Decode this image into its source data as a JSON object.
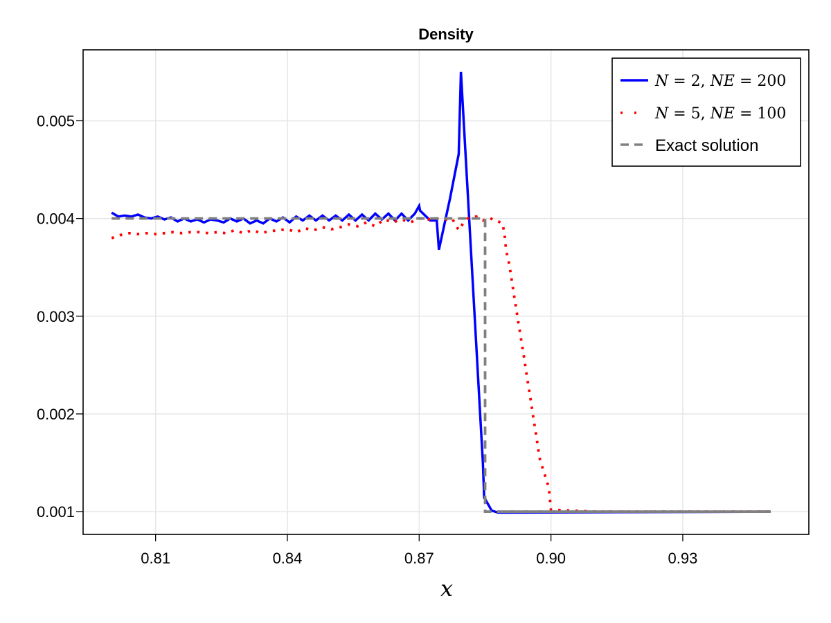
{
  "chart_data": {
    "type": "line",
    "title": "Density",
    "xlabel": "x",
    "ylabel": "",
    "xlim": [
      0.7935,
      0.9587
    ],
    "ylim": [
      0.000767,
      0.005726
    ],
    "grid": true,
    "legend_position": "top-right",
    "xticks": [
      0.81,
      0.84,
      0.87,
      0.9,
      0.93
    ],
    "xtick_labels": [
      "0.81",
      "0.84",
      "0.87",
      "0.90",
      "0.93"
    ],
    "yticks": [
      0.001,
      0.002,
      0.003,
      0.004,
      0.005
    ],
    "ytick_labels": [
      "0.001",
      "0.002",
      "0.003",
      "0.004",
      "0.005"
    ],
    "series": [
      {
        "name": "N = 2, NE = 200",
        "legend_label": "N=2, NE=200",
        "color": "#0000ff",
        "style": "solid",
        "x": [
          0.8,
          0.8015,
          0.803,
          0.8045,
          0.806,
          0.8075,
          0.809,
          0.8105,
          0.812,
          0.8135,
          0.815,
          0.8165,
          0.818,
          0.8195,
          0.821,
          0.8225,
          0.824,
          0.8255,
          0.827,
          0.8285,
          0.83,
          0.8315,
          0.833,
          0.8345,
          0.836,
          0.8375,
          0.839,
          0.8405,
          0.842,
          0.8435,
          0.845,
          0.8465,
          0.848,
          0.8495,
          0.851,
          0.8525,
          0.854,
          0.8555,
          0.857,
          0.8585,
          0.86,
          0.8615,
          0.863,
          0.8645,
          0.866,
          0.8675,
          0.869,
          0.87,
          0.8702,
          0.8725,
          0.874,
          0.8745,
          0.877,
          0.879,
          0.8795,
          0.8845,
          0.8848,
          0.885,
          0.8865,
          0.888,
          0.95
        ],
        "y": [
          0.00406,
          0.00402,
          0.00403,
          0.00402,
          0.00404,
          0.00401,
          0.004,
          0.00402,
          0.00399,
          0.00401,
          0.00397,
          0.004,
          0.00397,
          0.00399,
          0.00396,
          0.00399,
          0.00398,
          0.00396,
          0.004,
          0.00397,
          0.004,
          0.00395,
          0.00398,
          0.00395,
          0.004,
          0.00397,
          0.00401,
          0.00396,
          0.00402,
          0.00398,
          0.00403,
          0.00398,
          0.00403,
          0.00398,
          0.00403,
          0.00398,
          0.00404,
          0.00398,
          0.00404,
          0.00398,
          0.00405,
          0.00399,
          0.00405,
          0.00398,
          0.00405,
          0.00398,
          0.00405,
          0.00413,
          0.00408,
          0.00398,
          0.00398,
          0.00368,
          0.0042,
          0.00466,
          0.0055,
          0.0015,
          0.00114,
          0.00113,
          0.00101,
          0.00099,
          0.001
        ]
      },
      {
        "name": "N = 5, NE = 100",
        "legend_label": "N=5, NE=100",
        "color": "#ff0000",
        "style": "dotted",
        "x": [
          0.8,
          0.802,
          0.804,
          0.806,
          0.808,
          0.81,
          0.812,
          0.814,
          0.816,
          0.818,
          0.82,
          0.822,
          0.824,
          0.826,
          0.828,
          0.83,
          0.832,
          0.834,
          0.836,
          0.838,
          0.84,
          0.842,
          0.844,
          0.846,
          0.848,
          0.85,
          0.852,
          0.854,
          0.856,
          0.858,
          0.86,
          0.862,
          0.864,
          0.866,
          0.868,
          0.87,
          0.872,
          0.874,
          0.876,
          0.8775,
          0.879,
          0.88,
          0.881,
          0.883,
          0.8845,
          0.886,
          0.887,
          0.888,
          0.889,
          0.8895,
          0.8898,
          0.8905,
          0.891,
          0.8915,
          0.892,
          0.8925,
          0.893,
          0.8935,
          0.894,
          0.8945,
          0.895,
          0.8955,
          0.896,
          0.8965,
          0.897,
          0.8975,
          0.8985,
          0.8995,
          0.9,
          0.91,
          0.92,
          0.93,
          0.94,
          0.95
        ],
        "y": [
          0.0038,
          0.00383,
          0.00385,
          0.00384,
          0.00385,
          0.00384,
          0.00385,
          0.00386,
          0.00385,
          0.00386,
          0.00386,
          0.00385,
          0.00386,
          0.00385,
          0.00388,
          0.00385,
          0.00388,
          0.00385,
          0.00387,
          0.00388,
          0.00389,
          0.00386,
          0.0039,
          0.00388,
          0.00391,
          0.00389,
          0.00391,
          0.00394,
          0.00392,
          0.00396,
          0.00392,
          0.00399,
          0.00396,
          0.00399,
          0.00396,
          0.004,
          0.00399,
          0.004,
          0.00399,
          0.004,
          0.00388,
          0.00395,
          0.004,
          0.00402,
          0.00398,
          0.00401,
          0.00398,
          0.00397,
          0.00395,
          0.00381,
          0.00367,
          0.00353,
          0.00339,
          0.00324,
          0.0031,
          0.00296,
          0.00282,
          0.00268,
          0.00254,
          0.00239,
          0.00225,
          0.00211,
          0.00196,
          0.00182,
          0.00167,
          0.00153,
          0.00139,
          0.00125,
          0.00102,
          0.001,
          0.001,
          0.001,
          0.001,
          0.001
        ]
      },
      {
        "name": "Exact solution",
        "legend_label": "Exact solution",
        "color": "#808080",
        "style": "dashed",
        "x": [
          0.8,
          0.885,
          0.885,
          0.95
        ],
        "y": [
          0.004,
          0.004,
          0.001,
          0.001
        ]
      }
    ]
  },
  "legend": {
    "items": [
      {
        "label_parts": [
          "N",
          "=",
          "2,",
          "NE",
          "=",
          "200"
        ],
        "text": "N=2, NE=200"
      },
      {
        "label_parts": [
          "N",
          "=",
          "5,",
          "NE",
          "=",
          "100"
        ],
        "text": "N=5, NE=100"
      },
      {
        "text": "Exact solution"
      }
    ]
  }
}
